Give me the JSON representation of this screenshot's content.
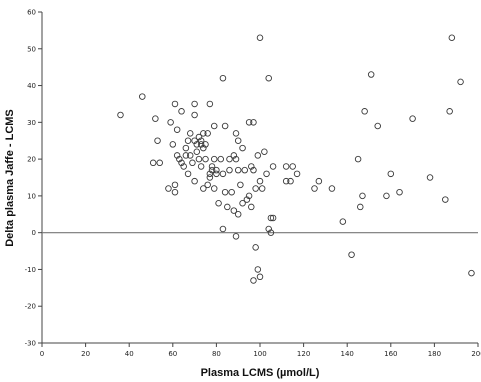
{
  "chart_data": {
    "type": "scatter",
    "title": "",
    "xlabel": "Plasma LCMS (µmol/L)",
    "ylabel": "Delta plasma Jaffe - LCMS",
    "xlim": [
      0,
      200
    ],
    "ylim": [
      -30,
      60
    ],
    "x_ticks": [
      0,
      20,
      40,
      60,
      80,
      100,
      120,
      140,
      160,
      180,
      200
    ],
    "y_ticks": [
      -30,
      -20,
      -10,
      0,
      10,
      20,
      30,
      40,
      50,
      60
    ],
    "reference_line_y": 0,
    "grid": false,
    "marker": "open-circle",
    "colors": {
      "marker": "#3a3a3a",
      "axis": "#444444",
      "reference_line": "#777777",
      "background": "#ffffff"
    },
    "points": [
      [
        36,
        32
      ],
      [
        46,
        37
      ],
      [
        51,
        19
      ],
      [
        52,
        31
      ],
      [
        53,
        25
      ],
      [
        54,
        19
      ],
      [
        58,
        12
      ],
      [
        59,
        30
      ],
      [
        60,
        24
      ],
      [
        61,
        13
      ],
      [
        61,
        11
      ],
      [
        61,
        35
      ],
      [
        62,
        28
      ],
      [
        62,
        21
      ],
      [
        63,
        20
      ],
      [
        64,
        33
      ],
      [
        64,
        19
      ],
      [
        65,
        18
      ],
      [
        66,
        21
      ],
      [
        66,
        23
      ],
      [
        67,
        25
      ],
      [
        67,
        16
      ],
      [
        68,
        27
      ],
      [
        68,
        21
      ],
      [
        69,
        19
      ],
      [
        70,
        35
      ],
      [
        70,
        25
      ],
      [
        70,
        32
      ],
      [
        70,
        14
      ],
      [
        71,
        22
      ],
      [
        71,
        24
      ],
      [
        72,
        20
      ],
      [
        72,
        26
      ],
      [
        73,
        25
      ],
      [
        73,
        18
      ],
      [
        73,
        24
      ],
      [
        74,
        23
      ],
      [
        74,
        12
      ],
      [
        74,
        27
      ],
      [
        75,
        24
      ],
      [
        75,
        20
      ],
      [
        76,
        27
      ],
      [
        76,
        13
      ],
      [
        77,
        15
      ],
      [
        77,
        35
      ],
      [
        77,
        16
      ],
      [
        78,
        18
      ],
      [
        78,
        17
      ],
      [
        79,
        12
      ],
      [
        79,
        29
      ],
      [
        79,
        20
      ],
      [
        80,
        16
      ],
      [
        80,
        17
      ],
      [
        81,
        8
      ],
      [
        82,
        20
      ],
      [
        83,
        16
      ],
      [
        83,
        42
      ],
      [
        83,
        1
      ],
      [
        84,
        11
      ],
      [
        84,
        29
      ],
      [
        85,
        7
      ],
      [
        86,
        20
      ],
      [
        86,
        17
      ],
      [
        87,
        11
      ],
      [
        88,
        6
      ],
      [
        88,
        21
      ],
      [
        89,
        20
      ],
      [
        89,
        27
      ],
      [
        89,
        -1
      ],
      [
        90,
        25
      ],
      [
        90,
        5
      ],
      [
        90,
        17
      ],
      [
        91,
        13
      ],
      [
        92,
        8
      ],
      [
        92,
        23
      ],
      [
        93,
        17
      ],
      [
        94,
        9
      ],
      [
        95,
        10
      ],
      [
        95,
        30
      ],
      [
        96,
        7
      ],
      [
        96,
        18
      ],
      [
        97,
        30
      ],
      [
        97,
        17
      ],
      [
        97,
        -13
      ],
      [
        98,
        -4
      ],
      [
        98,
        12
      ],
      [
        99,
        -10
      ],
      [
        99,
        21
      ],
      [
        100,
        -12
      ],
      [
        100,
        14
      ],
      [
        100,
        53
      ],
      [
        101,
        12
      ],
      [
        102,
        22
      ],
      [
        103,
        16
      ],
      [
        104,
        1
      ],
      [
        104,
        42
      ],
      [
        105,
        0
      ],
      [
        105,
        4
      ],
      [
        106,
        18
      ],
      [
        106,
        4
      ],
      [
        112,
        18
      ],
      [
        112,
        14
      ],
      [
        114,
        14
      ],
      [
        115,
        18
      ],
      [
        117,
        16
      ],
      [
        125,
        12
      ],
      [
        127,
        14
      ],
      [
        133,
        12
      ],
      [
        138,
        3
      ],
      [
        142,
        -6
      ],
      [
        145,
        20
      ],
      [
        146,
        7
      ],
      [
        147,
        10
      ],
      [
        148,
        33
      ],
      [
        151,
        43
      ],
      [
        154,
        29
      ],
      [
        158,
        10
      ],
      [
        160,
        16
      ],
      [
        164,
        11
      ],
      [
        170,
        31
      ],
      [
        178,
        15
      ],
      [
        185,
        9
      ],
      [
        187,
        33
      ],
      [
        188,
        53
      ],
      [
        192,
        41
      ],
      [
        197,
        -11
      ]
    ]
  }
}
